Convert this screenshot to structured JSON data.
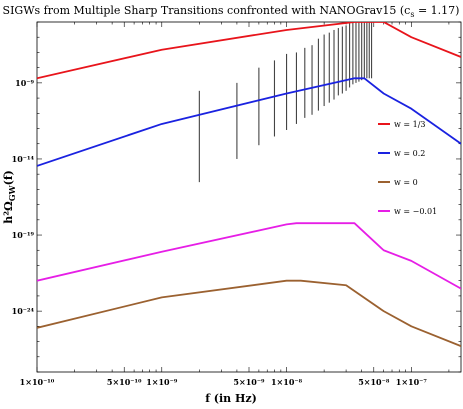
{
  "chart_data": {
    "type": "line",
    "title": "SIGWs from Multiple Sharp Transitions confronted with NANOGrav15 (c",
    "title_sub": "s",
    "title_end": " = 1.17)",
    "xlabel": "f (in Hz)",
    "ylabel": "h²Ω",
    "ylabel_sub": "GW",
    "ylabel_end": "(f)",
    "x_scale": "log",
    "y_scale": "log",
    "xlim": [
      1e-10,
      2.5e-07
    ],
    "ylim": [
      1e-28,
      1e-05
    ],
    "x_ticks": [
      {
        "value": 1e-10,
        "label": "1×10⁻¹⁰"
      },
      {
        "value": 5e-10,
        "label": "5×10⁻¹⁰"
      },
      {
        "value": 1e-09,
        "label": "1×10⁻⁹"
      },
      {
        "value": 5e-09,
        "label": "5×10⁻⁹"
      },
      {
        "value": 1e-08,
        "label": "1×10⁻⁸"
      },
      {
        "value": 5e-08,
        "label": "5×10⁻⁸"
      },
      {
        "value": 1e-07,
        "label": "1×10⁻⁷"
      }
    ],
    "y_ticks": [
      {
        "value": 1e-09,
        "label": "10⁻⁹"
      },
      {
        "value": 1e-14,
        "label": "10⁻¹⁴"
      },
      {
        "value": 1e-19,
        "label": "10⁻¹⁹"
      },
      {
        "value": 1e-24,
        "label": "10⁻²⁴"
      }
    ],
    "legend_position": "right",
    "series": [
      {
        "name": "w = 1/3",
        "color": "#e8141b",
        "points": [
          [
            1e-10,
            2e-09
          ],
          [
            1e-09,
            1.5e-07
          ],
          [
            1e-08,
            3e-06
          ],
          [
            3.5e-08,
            1e-05
          ],
          [
            6e-08,
            1e-05
          ],
          [
            1e-07,
            1e-06
          ],
          [
            2.5e-07,
            5e-08
          ]
        ]
      },
      {
        "name": "w = 0.2",
        "color": "#1a22e0",
        "points": [
          [
            1e-10,
            3.5e-15
          ],
          [
            1e-09,
            2e-12
          ],
          [
            1e-08,
            2e-10
          ],
          [
            3.5e-08,
            2e-09
          ],
          [
            4.2e-08,
            2e-09
          ],
          [
            6e-08,
            2e-10
          ],
          [
            1e-07,
            2e-11
          ],
          [
            2.5e-07,
            1e-13
          ]
        ]
      },
      {
        "name": "w = 0",
        "color": "#9b6130",
        "points": [
          [
            1e-10,
            8e-26
          ],
          [
            1e-09,
            8e-24
          ],
          [
            1e-08,
            1e-22
          ],
          [
            1.3e-08,
            1e-22
          ],
          [
            3e-08,
            5e-23
          ],
          [
            6e-08,
            1e-24
          ],
          [
            1e-07,
            1e-25
          ],
          [
            2.5e-07,
            5e-27
          ]
        ]
      },
      {
        "name": "w = −0.01",
        "color": "#e61ee6",
        "points": [
          [
            1e-10,
            1e-22
          ],
          [
            1e-09,
            8e-21
          ],
          [
            1e-08,
            5e-19
          ],
          [
            1.2e-08,
            6e-19
          ],
          [
            3.5e-08,
            6e-19
          ],
          [
            6e-08,
            1e-20
          ],
          [
            1e-07,
            2e-21
          ],
          [
            2.5e-07,
            3e-23
          ]
        ]
      }
    ],
    "error_bars": {
      "name": "NANOGrav15",
      "color": "#444444",
      "points": [
        {
          "x": 2e-09,
          "low": 3e-16,
          "high": 3e-10
        },
        {
          "x": 4e-09,
          "low": 1e-14,
          "high": 1e-09
        },
        {
          "x": 6e-09,
          "low": 8e-14,
          "high": 1e-08
        },
        {
          "x": 8e-09,
          "low": 3e-13,
          "high": 3e-08
        },
        {
          "x": 1e-08,
          "low": 8e-13,
          "high": 8e-08
        },
        {
          "x": 1.2e-08,
          "low": 2e-12,
          "high": 1e-07
        },
        {
          "x": 1.4e-08,
          "low": 5e-12,
          "high": 2e-07
        },
        {
          "x": 1.6e-08,
          "low": 8e-12,
          "high": 3e-07
        },
        {
          "x": 1.8e-08,
          "low": 1.5e-11,
          "high": 8e-07
        },
        {
          "x": 2e-08,
          "low": 3e-11,
          "high": 1.5e-06
        },
        {
          "x": 2.2e-08,
          "low": 5e-11,
          "high": 2e-06
        },
        {
          "x": 2.4e-08,
          "low": 8e-11,
          "high": 3e-06
        },
        {
          "x": 2.6e-08,
          "low": 1.5e-10,
          "high": 4e-06
        },
        {
          "x": 2.8e-08,
          "low": 2e-10,
          "high": 5e-06
        },
        {
          "x": 3e-08,
          "low": 3e-10,
          "high": 6e-06
        },
        {
          "x": 3.2e-08,
          "low": 5e-10,
          "high": 8e-06
        },
        {
          "x": 3.4e-08,
          "low": 8e-10,
          "high": 9e-06
        },
        {
          "x": 3.6e-08,
          "low": 1e-09,
          "high": 1e-05
        },
        {
          "x": 3.8e-08,
          "low": 1.2e-09,
          "high": 1e-05
        },
        {
          "x": 4e-08,
          "low": 1.5e-09,
          "high": 1e-05
        },
        {
          "x": 4.2e-08,
          "low": 1.8e-09,
          "high": 1e-05
        },
        {
          "x": 4.4e-08,
          "low": 2e-09,
          "high": 1e-05
        },
        {
          "x": 4.6e-08,
          "low": 2e-09,
          "high": 1e-05
        },
        {
          "x": 4.8e-08,
          "low": 2e-09,
          "high": 1e-05
        }
      ]
    }
  }
}
